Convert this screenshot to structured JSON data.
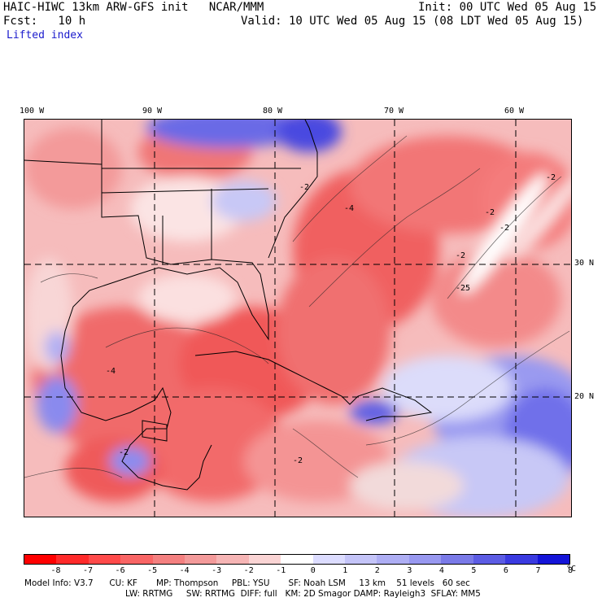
{
  "header": {
    "model_line": "HAIC-HIWC 13km ARW-GFS init   NCAR/MMM",
    "init_line": "Init: 00 UTC Wed 05 Aug 15",
    "fcst_line": "Fcst:   10 h",
    "valid_line": "Valid: 10 UTC Wed 05 Aug 15 (08 LDT Wed 05 Aug 15)",
    "field_name": "Lifted index"
  },
  "map": {
    "lon_labels": [
      "100 W",
      "90 W",
      "80 W",
      "70 W",
      "60 W"
    ],
    "lat_labels": [
      "30 N",
      "20 N"
    ],
    "contour_labels": [
      "-2",
      "-4",
      "-2",
      "-2",
      "-2",
      "-2",
      "-25",
      "-4",
      "-2",
      "-2"
    ]
  },
  "colorbar": {
    "colors": [
      "#ff0000",
      "#ff2a2a",
      "#ff4a4a",
      "#f96565",
      "#f48080",
      "#f39a9a",
      "#f6b5b5",
      "#fad4d4",
      "#ffffff",
      "#dcdcff",
      "#c4c4f8",
      "#aeaef4",
      "#9898f0",
      "#7a7ae8",
      "#5c5ce4",
      "#3a3ae0",
      "#1414d8"
    ],
    "ticks": [
      "-8",
      "-7",
      "-6",
      "-5",
      "-4",
      "-3",
      "-2",
      "-1",
      "0",
      "1",
      "2",
      "3",
      "4",
      "5",
      "6",
      "7",
      "8"
    ],
    "unit": "°C"
  },
  "model_info": {
    "line1": "Model Info: V3.7      CU: KF       MP: Thompson     PBL: YSU       SF: Noah LSM     13 km    51 levels   60 sec",
    "line2": "LW: RRTMG     SW: RRTMG  DIFF: full   KM: 2D Smagor DAMP: Rayleigh3  SFLAY: MM5"
  }
}
